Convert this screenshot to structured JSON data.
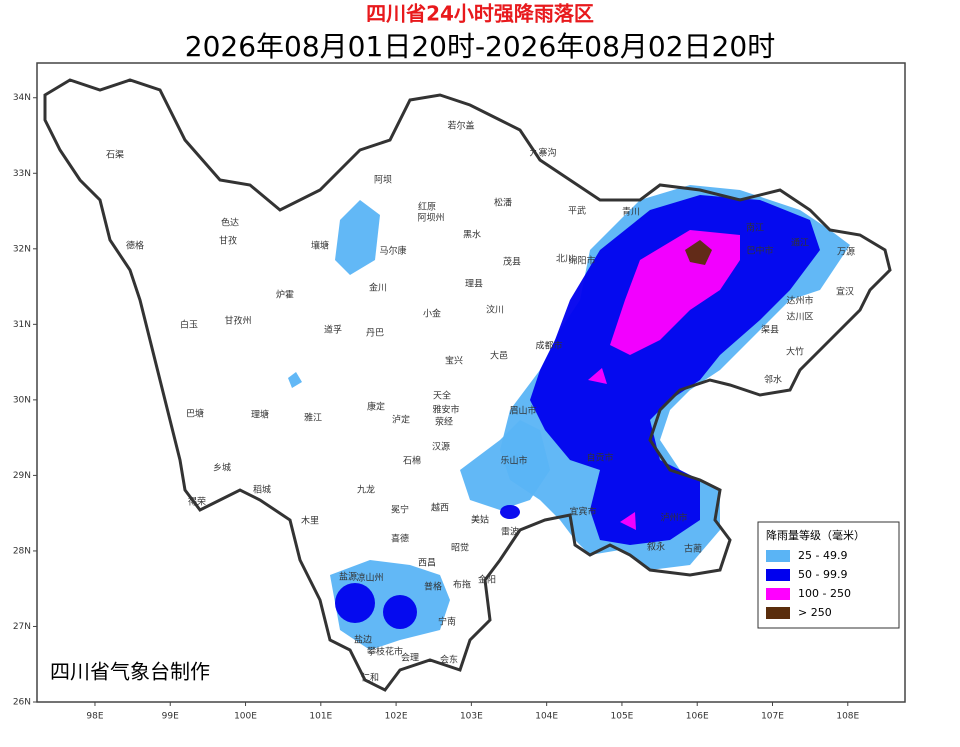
{
  "title": "四川省24小时强降雨落区",
  "subtitle": "2026年08月01日20时-2026年08月02日20时",
  "credit": "四川省气象台制作",
  "lon_range": [
    97.23,
    108.76
  ],
  "lat_range": [
    26,
    34.46
  ],
  "lon_ticks": [
    {
      "value": 98,
      "label": "98E"
    },
    {
      "value": 99,
      "label": "99E"
    },
    {
      "value": 100,
      "label": "100E"
    },
    {
      "value": 101,
      "label": "101E"
    },
    {
      "value": 102,
      "label": "102E"
    },
    {
      "value": 103,
      "label": "103E"
    },
    {
      "value": 104,
      "label": "104E"
    },
    {
      "value": 105,
      "label": "105E"
    },
    {
      "value": 106,
      "label": "106E"
    },
    {
      "value": 107,
      "label": "107E"
    },
    {
      "value": 108,
      "label": "108E"
    }
  ],
  "lat_ticks": [
    {
      "value": 26,
      "label": "26N"
    },
    {
      "value": 27,
      "label": "27N"
    },
    {
      "value": 28,
      "label": "28N"
    },
    {
      "value": 29,
      "label": "29N"
    },
    {
      "value": 30,
      "label": "30N"
    },
    {
      "value": 31,
      "label": "31N"
    },
    {
      "value": 32,
      "label": "32N"
    },
    {
      "value": 33,
      "label": "33N"
    },
    {
      "value": 34,
      "label": "34N"
    }
  ],
  "legend": {
    "title": "降雨量等级（毫米）",
    "items": [
      {
        "label": "25 - 49.9",
        "color": "#5ab4f5"
      },
      {
        "label": "50 - 99.9",
        "color": "#0000ee"
      },
      {
        "label": "100 - 250",
        "color": "#ff00ff"
      },
      {
        "label": "> 250",
        "color": "#5a2d0c"
      }
    ]
  },
  "places": [
    "石渠",
    "德格",
    "色达",
    "甘孜",
    "炉霍",
    "白玉",
    "甘孜州",
    "巴塘",
    "理塘",
    "乡城",
    "得荣",
    "稻城",
    "木里",
    "九龙",
    "雅江",
    "道孚",
    "丹巴",
    "康定",
    "泸定",
    "壤塘",
    "马尔康",
    "金川",
    "小金",
    "阿坝",
    "红原",
    "阿坝州",
    "若尔盖",
    "九寨沟",
    "松潘",
    "黑水",
    "茂县",
    "理县",
    "汶川",
    "平武",
    "青川",
    "北川",
    "宝兴",
    "天全",
    "雅安市",
    "荥经",
    "汉源",
    "石棉",
    "越西",
    "冕宁",
    "喜德",
    "昭觉",
    "美姑",
    "雷波",
    "盐源",
    "凉山州",
    "西昌",
    "普格",
    "布拖",
    "金阳",
    "宁南",
    "会东",
    "盐边",
    "攀枝花市",
    "会理",
    "仁和",
    "成都市",
    "大邑",
    "乐山市",
    "眉山市",
    "宜宾市",
    "泸州市",
    "古蔺",
    "叙永",
    "巴中市",
    "万源",
    "宣汉",
    "达州市",
    "达川区",
    "渠县",
    "大竹",
    "邻水",
    "南江",
    "通江",
    "绵阳市",
    "自贡市"
  ]
}
